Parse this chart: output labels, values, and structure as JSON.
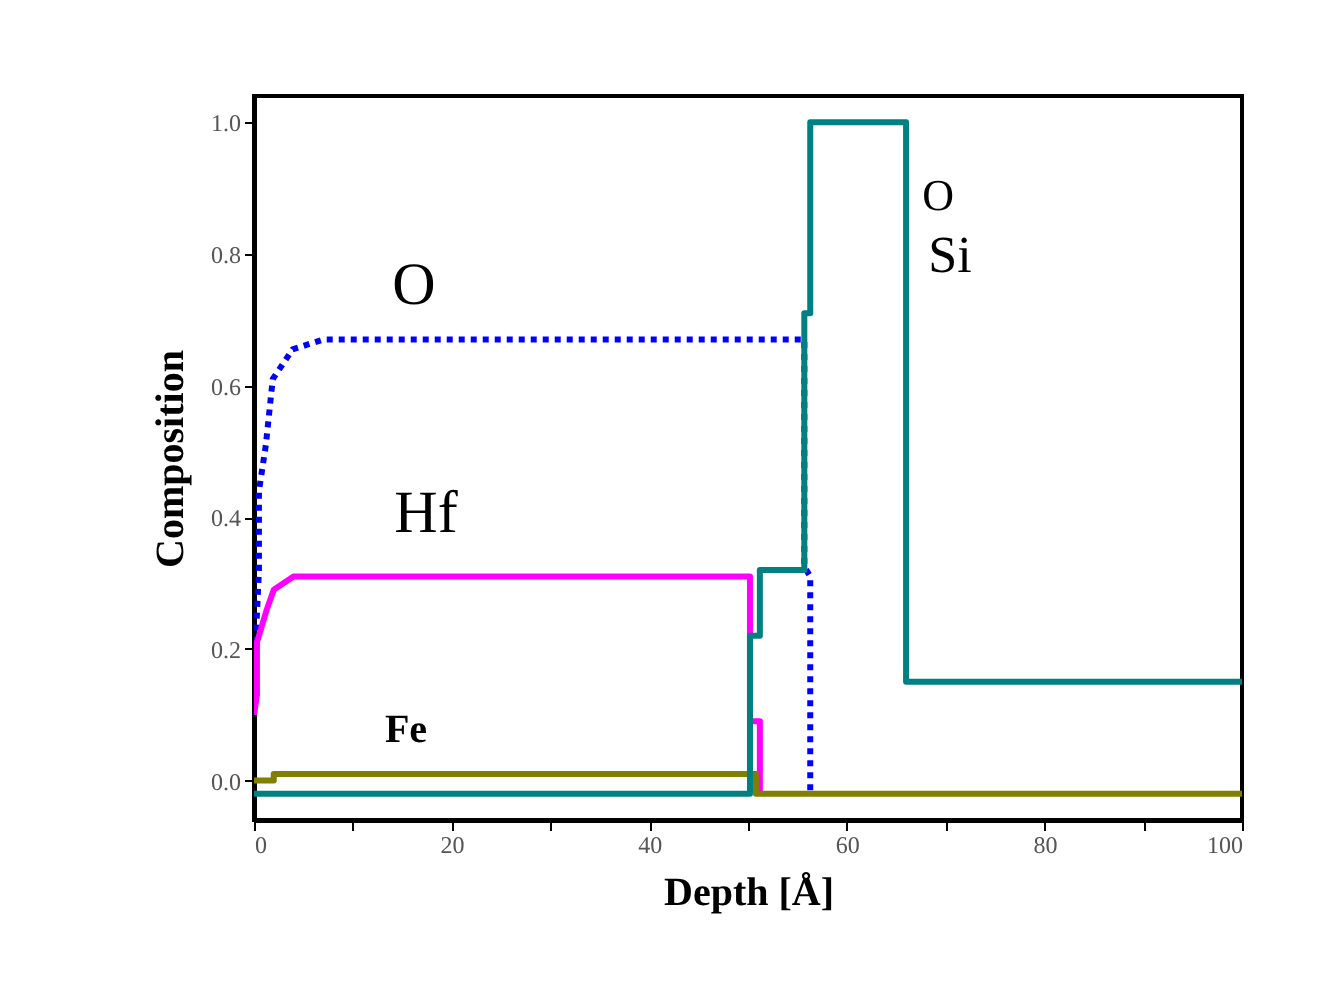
{
  "chart_data": {
    "type": "line",
    "xlabel": "Depth [Å]",
    "ylabel": "Composition",
    "xlim": [
      0,
      100
    ],
    "ylim": [
      -0.06,
      1.04
    ],
    "xticks": [
      0,
      {
        "value": 10,
        "label": null
      },
      20,
      {
        "value": 30,
        "label": null
      },
      40,
      {
        "value": 50,
        "label": null
      },
      60,
      {
        "value": 70,
        "label": null
      },
      80,
      {
        "value": 90,
        "label": null
      },
      100
    ],
    "yticks": [
      {
        "value": 0,
        "label": "0.0"
      },
      {
        "value": 0.2,
        "label": "0.2"
      },
      {
        "value": 0.4,
        "label": "0.4"
      },
      {
        "value": 0.6,
        "label": "0.6"
      },
      {
        "value": 0.8,
        "label": "0.8"
      },
      {
        "value": 1,
        "label": "1.0"
      }
    ],
    "grid": false,
    "legend": false,
    "marker": "none",
    "series": [
      {
        "name": "O",
        "color": "#0000ff",
        "line_style": "dotted",
        "x": [
          0,
          0.2,
          0.5,
          0.5,
          1.2,
          1.9,
          3.9,
          7,
          55.7,
          55.7,
          56.3,
          56.3
        ],
        "values": [
          0.1,
          0.22,
          0.32,
          0.44,
          0.51,
          0.61,
          0.655,
          0.67,
          0.67,
          0.325,
          0.31,
          -0.02
        ]
      },
      {
        "name": "Hf",
        "color": "#ff00ff",
        "line_style": "solid",
        "x": [
          0,
          0.3,
          0.3,
          1.3,
          2,
          4,
          50.2,
          50.2,
          51.2,
          51.2
        ],
        "values": [
          0.1,
          0.13,
          0.21,
          0.26,
          0.29,
          0.31,
          0.31,
          0.09,
          0.09,
          -0.02
        ]
      },
      {
        "name": "Fe",
        "color": "#808000",
        "line_style": "solid",
        "x": [
          0,
          2,
          2,
          50.8,
          50.8,
          100
        ],
        "values": [
          0,
          0,
          0.01,
          0.01,
          -0.02,
          -0.02
        ]
      },
      {
        "name": "Si",
        "color": "#008080",
        "line_style": "solid",
        "x": [
          0,
          50.2,
          50.2,
          51.2,
          51.2,
          55.7,
          55.7,
          56.3,
          56.3,
          66,
          66,
          100
        ],
        "values": [
          -0.02,
          -0.02,
          0.22,
          0.22,
          0.32,
          0.32,
          0.71,
          0.71,
          1.0,
          1.0,
          0.15,
          0.15
        ]
      }
    ],
    "annotations": [
      "O"
    ]
  }
}
